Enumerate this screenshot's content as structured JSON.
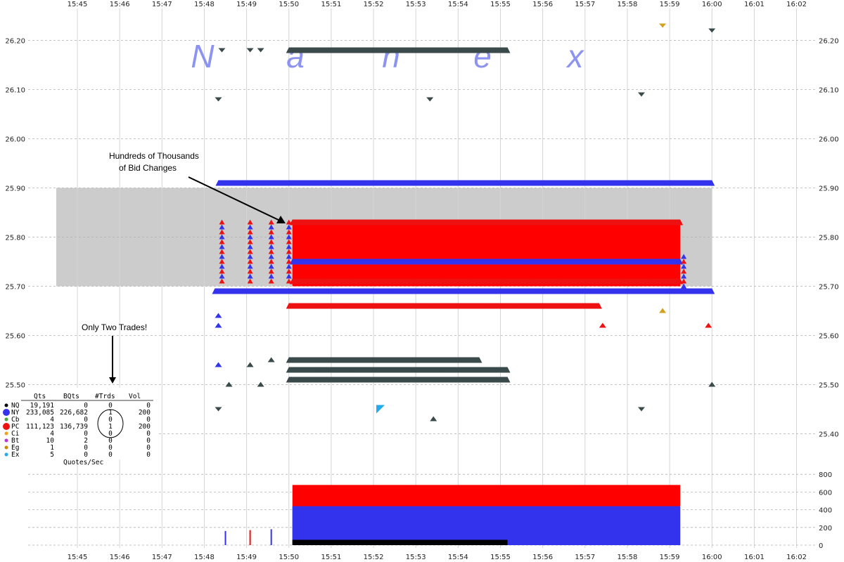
{
  "chart_data": {
    "type": "scatter",
    "watermark": [
      "N",
      "a",
      "n",
      "e",
      "x"
    ],
    "x_ticks": [
      "15:45",
      "15:46",
      "15:47",
      "15:48",
      "15:49",
      "15:50",
      "15:51",
      "15:52",
      "15:53",
      "15:54",
      "15:55",
      "15:56",
      "15:57",
      "15:58",
      "15:59",
      "16:00",
      "16:01",
      "16:02"
    ],
    "y_ticks": [
      "26.20",
      "26.10",
      "26.00",
      "25.90",
      "25.80",
      "25.70",
      "25.60",
      "25.50",
      "25.40"
    ],
    "ylim": [
      25.37,
      26.25
    ],
    "nbbo_band": {
      "low": 25.7,
      "high": 25.9,
      "start": "15:44:30",
      "end": "16:00:00",
      "color": "#cccccc"
    },
    "series": [
      {
        "name": "NQ",
        "color": "#000000"
      },
      {
        "name": "NY",
        "color": "#3333ee"
      },
      {
        "name": "Cb",
        "color": "#44aa33"
      },
      {
        "name": "PC",
        "color": "#ee1111"
      },
      {
        "name": "Ci",
        "color": "#f0a020"
      },
      {
        "name": "Bt",
        "color": "#bb33dd"
      },
      {
        "name": "Eg",
        "color": "#cc8800"
      },
      {
        "name": "Ex",
        "color": "#22aaee"
      }
    ],
    "bid_series": [
      {
        "color": "#3333ee",
        "price": 25.91,
        "start": "15:48:20",
        "end": "16:00:00"
      },
      {
        "color": "#ee1111",
        "price": 25.83,
        "start": "15:50:05",
        "end": "15:59:15"
      },
      {
        "color": "#3333ee",
        "price": 25.75,
        "start": "15:50:05",
        "end": "15:59:15"
      },
      {
        "color": "#ee1111",
        "price": 25.71,
        "start": "15:50:05",
        "end": "15:59:15"
      },
      {
        "color": "#3333ee",
        "price": 25.69,
        "start": "15:48:15",
        "end": "16:00:00"
      },
      {
        "color": "#ee1111",
        "price": 25.66,
        "start": "15:50:00",
        "end": "15:57:20"
      },
      {
        "color": "#3a4a4a",
        "price": 26.18,
        "start": "15:50:00",
        "end": "15:55:10"
      },
      {
        "color": "#3a4a4a",
        "price": 25.55,
        "start": "15:50:00",
        "end": "15:54:30"
      },
      {
        "color": "#3a4a4a",
        "price": 25.53,
        "start": "15:50:00",
        "end": "15:55:10"
      },
      {
        "color": "#3a4a4a",
        "price": 25.51,
        "start": "15:50:00",
        "end": "15:55:10"
      }
    ],
    "isolated_quotes": [
      {
        "t": "15:48:25",
        "p": 26.18,
        "color": "#3a4a4a",
        "dir": "down"
      },
      {
        "t": "15:49:05",
        "p": 26.18,
        "color": "#3a4a4a",
        "dir": "down"
      },
      {
        "t": "15:49:20",
        "p": 26.18,
        "color": "#3a4a4a",
        "dir": "down"
      },
      {
        "t": "15:48:20",
        "p": 26.08,
        "color": "#3a4a4a",
        "dir": "down"
      },
      {
        "t": "15:53:20",
        "p": 26.08,
        "color": "#3a4a4a",
        "dir": "down"
      },
      {
        "t": "15:58:20",
        "p": 26.09,
        "color": "#3a4a4a",
        "dir": "down"
      },
      {
        "t": "15:58:50",
        "p": 26.23,
        "color": "#d4a020",
        "dir": "down"
      },
      {
        "t": "16:00:00",
        "p": 26.22,
        "color": "#3a4a4a",
        "dir": "down"
      },
      {
        "t": "15:58:50",
        "p": 25.65,
        "color": "#d4a020",
        "dir": "up"
      },
      {
        "t": "15:48:20",
        "p": 25.64,
        "color": "#3333ee",
        "dir": "up"
      },
      {
        "t": "15:48:20",
        "p": 25.62,
        "color": "#3333ee",
        "dir": "up"
      },
      {
        "t": "15:57:25",
        "p": 25.62,
        "color": "#ee1111",
        "dir": "up"
      },
      {
        "t": "15:59:55",
        "p": 25.62,
        "color": "#ee1111",
        "dir": "up"
      },
      {
        "t": "15:48:20",
        "p": 25.54,
        "color": "#3333ee",
        "dir": "up"
      },
      {
        "t": "15:49:05",
        "p": 25.54,
        "color": "#3a4a4a",
        "dir": "up"
      },
      {
        "t": "15:49:35",
        "p": 25.55,
        "color": "#3a4a4a",
        "dir": "up"
      },
      {
        "t": "15:48:35",
        "p": 25.5,
        "color": "#3a4a4a",
        "dir": "up"
      },
      {
        "t": "15:49:20",
        "p": 25.5,
        "color": "#3a4a4a",
        "dir": "up"
      },
      {
        "t": "16:00:00",
        "p": 25.5,
        "color": "#3a4a4a",
        "dir": "up"
      },
      {
        "t": "15:48:20",
        "p": 25.45,
        "color": "#3a4a4a",
        "dir": "down"
      },
      {
        "t": "15:53:25",
        "p": 25.43,
        "color": "#3a4a4a",
        "dir": "up"
      },
      {
        "t": "15:58:20",
        "p": 25.45,
        "color": "#3a4a4a",
        "dir": "down"
      },
      {
        "t": "15:52:10",
        "p": 25.45,
        "color": "#22aaee",
        "dir": "flag"
      }
    ],
    "volume_panel": {
      "ylabel_ticks": [
        "800",
        "600",
        "400",
        "200",
        "0"
      ],
      "ylim": [
        0,
        800
      ],
      "start": "15:50:05",
      "end": "15:59:15",
      "total_level": 680,
      "ny_level": 440,
      "nq_level": 60,
      "nq_end": "15:55:10"
    },
    "annotations": [
      {
        "text": "Hundreds of Thousands"
      },
      {
        "text": "of Bid Changes"
      },
      {
        "text": "Only Two Trades!"
      }
    ],
    "stats_table": {
      "headers": [
        "Qts",
        "BQts",
        "#Trds",
        "Vol"
      ],
      "rows": [
        {
          "ex": "NQ",
          "qts": "19,191",
          "bqts": "0",
          "trds": "0",
          "vol": "0",
          "color": "#000000"
        },
        {
          "ex": "NY",
          "qts": "233,085",
          "bqts": "226,682",
          "trds": "1",
          "vol": "200",
          "color": "#3333ee"
        },
        {
          "ex": "Cb",
          "qts": "4",
          "bqts": "0",
          "trds": "0",
          "vol": "0",
          "color": "#44aa33"
        },
        {
          "ex": "PC",
          "qts": "111,123",
          "bqts": "136,739",
          "trds": "1",
          "vol": "200",
          "color": "#ee1111"
        },
        {
          "ex": "Ci",
          "qts": "4",
          "bqts": "0",
          "trds": "0",
          "vol": "0",
          "color": "#f0a020"
        },
        {
          "ex": "Bt",
          "qts": "10",
          "bqts": "2",
          "trds": "0",
          "vol": "0",
          "color": "#bb33dd"
        },
        {
          "ex": "Eg",
          "qts": "1",
          "bqts": "0",
          "trds": "0",
          "vol": "0",
          "color": "#cc8800"
        },
        {
          "ex": "Ex",
          "qts": "5",
          "bqts": "0",
          "trds": "0",
          "vol": "0",
          "color": "#22aaee"
        }
      ],
      "footer": "Quotes/Sec"
    }
  }
}
